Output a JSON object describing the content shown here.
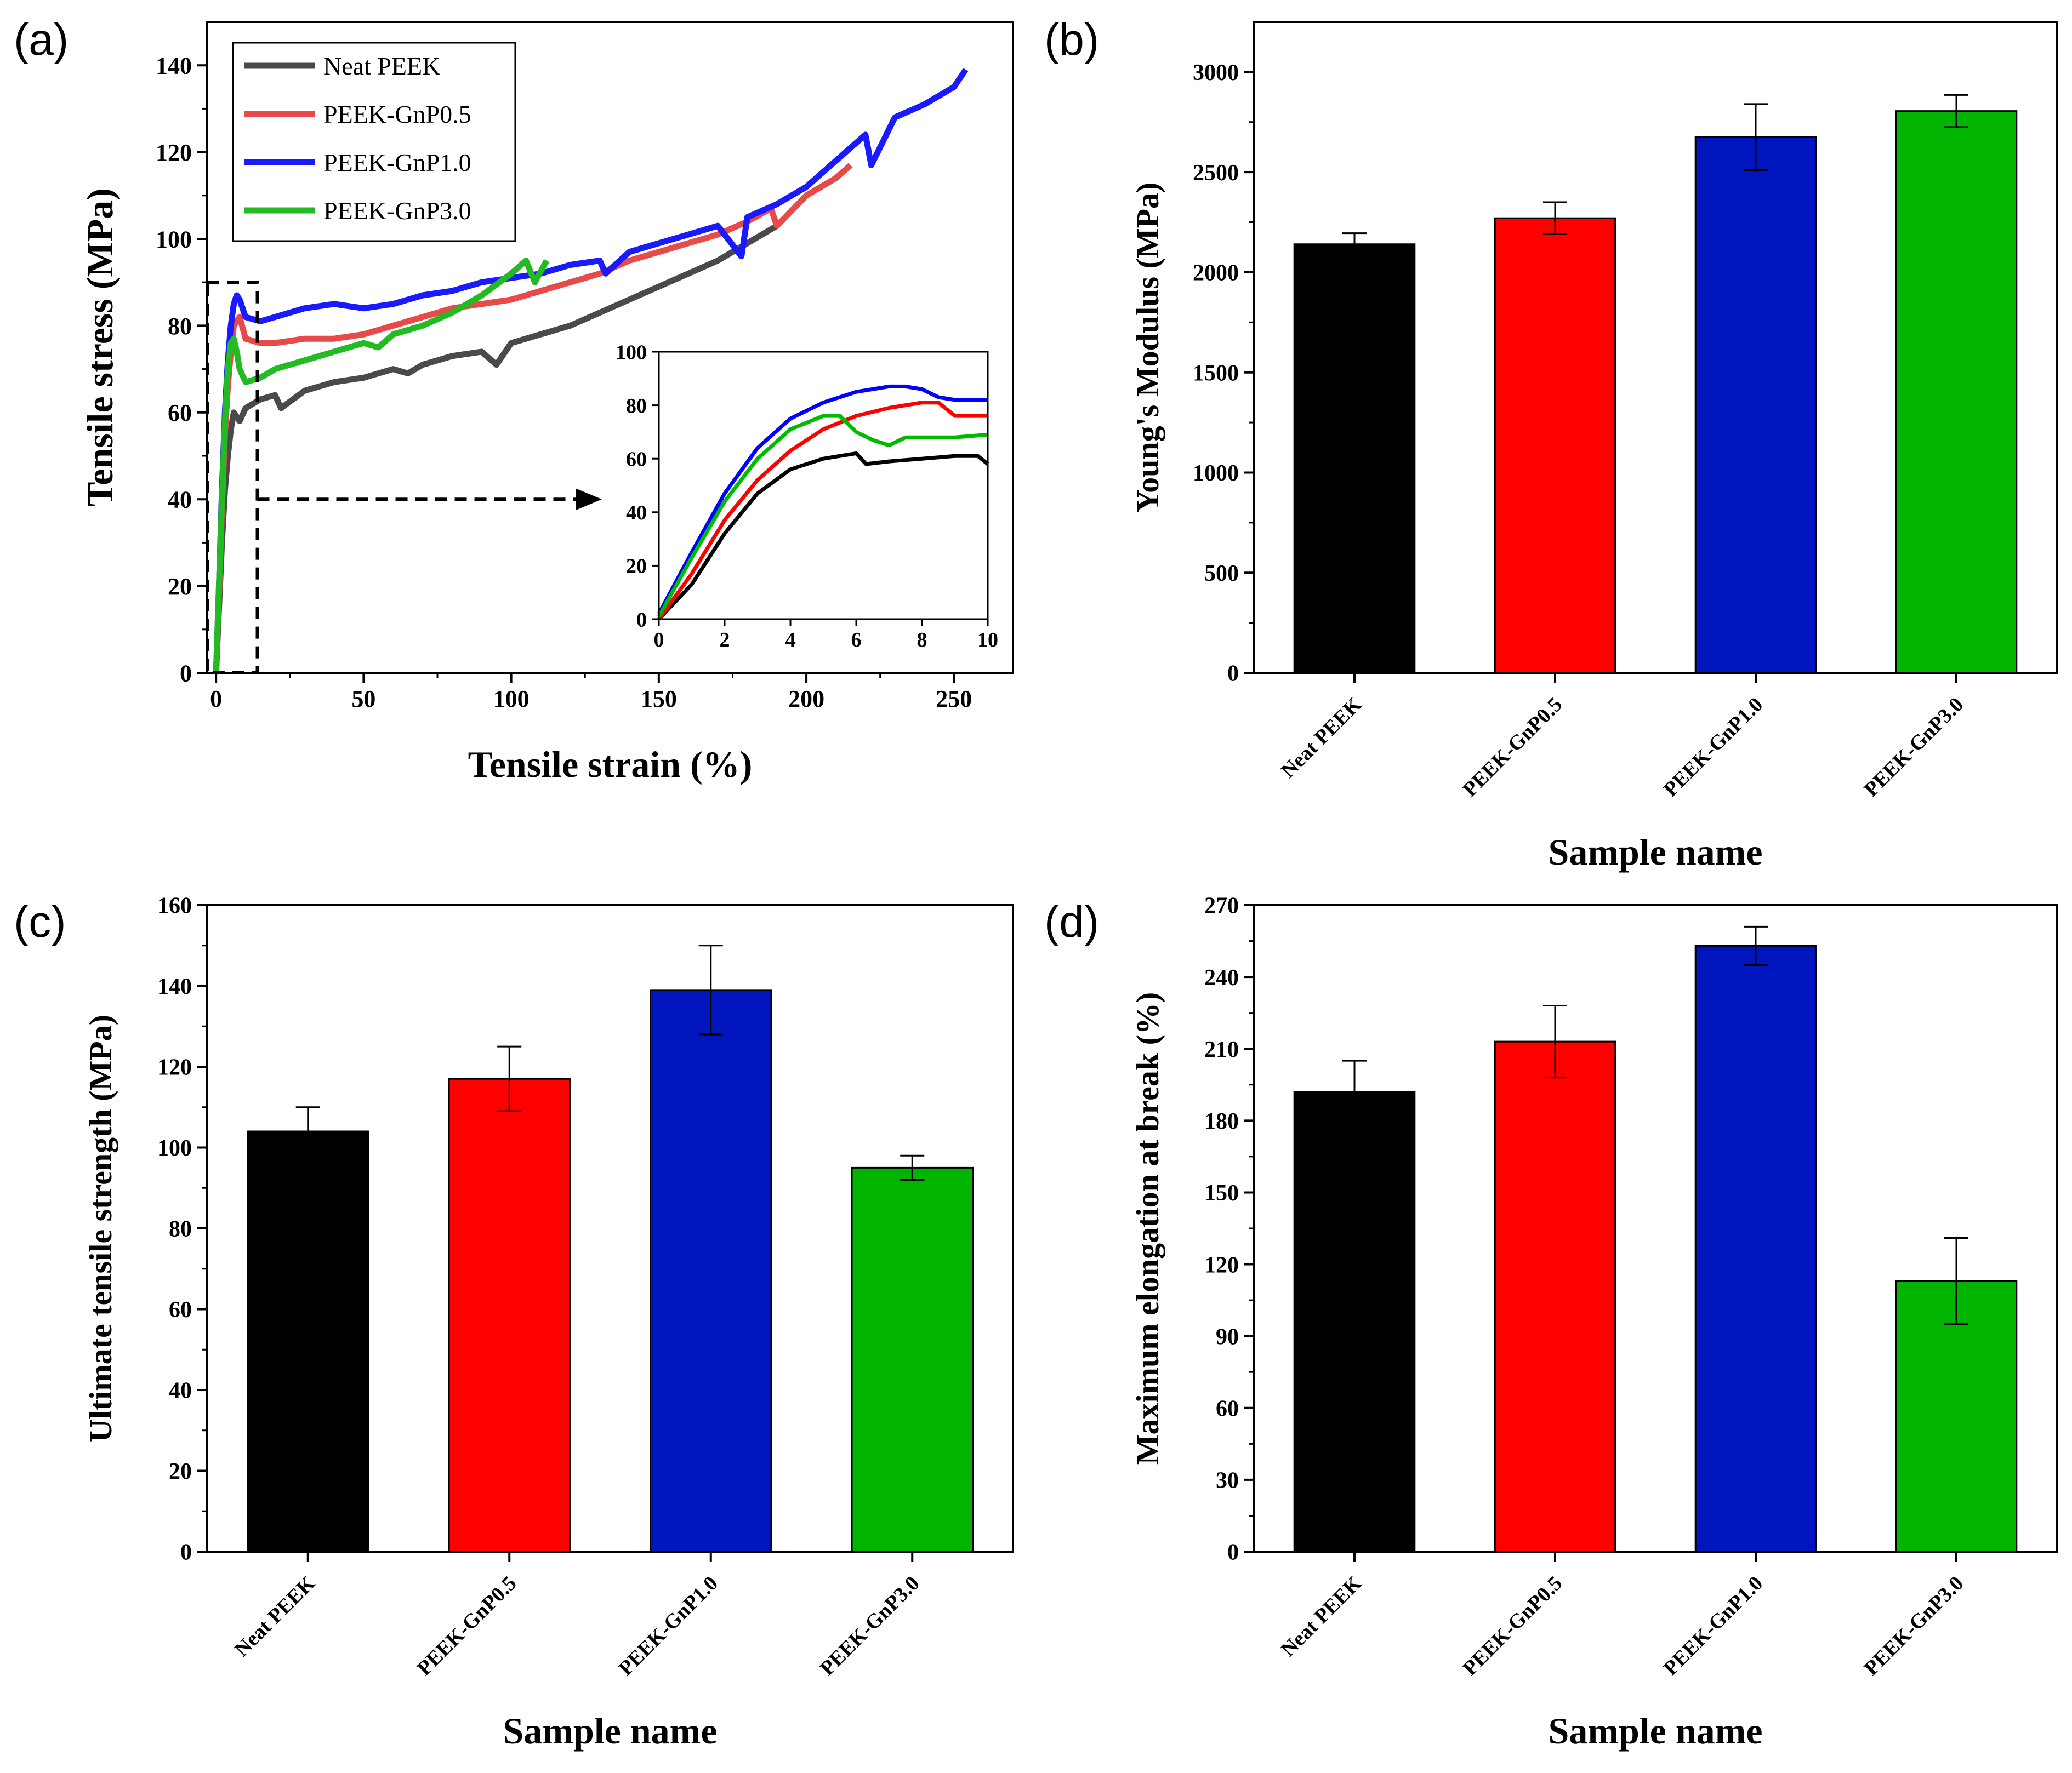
{
  "figure": {
    "panel_labels": [
      "(a)",
      "(b)",
      "(c)",
      "(d)"
    ]
  },
  "chart_data": [
    {
      "panel": "(a)",
      "type": "line",
      "title": "",
      "xlabel": "Tensile strain (%)",
      "ylabel": "Tensile stress (MPa)",
      "xlim": [
        -3,
        270
      ],
      "ylim": [
        0,
        150
      ],
      "xticks": [
        0,
        50,
        100,
        150,
        200,
        250
      ],
      "yticks": [
        0,
        20,
        40,
        60,
        80,
        100,
        120,
        140
      ],
      "legend": "top-left",
      "series": [
        {
          "name": "Neat PEEK",
          "color": "#4a4a4a",
          "x": [
            0,
            1,
            2,
            3,
            4,
            5,
            6,
            8,
            10,
            15,
            20,
            22,
            30,
            40,
            50,
            60,
            65,
            70,
            80,
            90,
            95,
            100,
            110,
            120,
            130,
            140,
            150,
            160,
            170,
            180,
            190
          ],
          "y": [
            0,
            15,
            30,
            42,
            50,
            56,
            60,
            58,
            61,
            63,
            64,
            61,
            65,
            67,
            68,
            70,
            69,
            71,
            73,
            74,
            71,
            76,
            78,
            80,
            83,
            86,
            89,
            92,
            95,
            99,
            103
          ]
        },
        {
          "name": "PEEK-GnP0.5",
          "color": "#e84a4a",
          "x": [
            0,
            1,
            2,
            3,
            4,
            5,
            6,
            8,
            10,
            15,
            20,
            30,
            40,
            50,
            60,
            70,
            80,
            90,
            100,
            110,
            120,
            130,
            140,
            150,
            160,
            170,
            180,
            188,
            190,
            200,
            210,
            215
          ],
          "y": [
            0,
            18,
            38,
            55,
            66,
            74,
            80,
            82,
            77,
            76,
            76,
            77,
            77,
            78,
            80,
            82,
            84,
            85,
            86,
            88,
            90,
            92,
            95,
            97,
            99,
            101,
            104,
            107,
            103,
            110,
            114,
            117
          ]
        },
        {
          "name": "PEEK-GnP1.0",
          "color": "#1a1aff",
          "x": [
            0,
            1,
            2,
            3,
            4,
            5,
            6,
            7,
            8,
            10,
            15,
            20,
            30,
            40,
            50,
            60,
            70,
            80,
            90,
            100,
            110,
            120,
            130,
            132,
            140,
            150,
            160,
            170,
            178,
            180,
            190,
            200,
            210,
            220,
            222,
            230,
            240,
            250,
            254
          ],
          "y": [
            0,
            20,
            42,
            60,
            72,
            80,
            85,
            87,
            86,
            82,
            81,
            82,
            84,
            85,
            84,
            85,
            87,
            88,
            90,
            91,
            92,
            94,
            95,
            92,
            97,
            99,
            101,
            103,
            96,
            105,
            108,
            112,
            118,
            124,
            117,
            128,
            131,
            135,
            139
          ]
        },
        {
          "name": "PEEK-GnP3.0",
          "color": "#22bb22",
          "x": [
            0,
            1,
            2,
            3,
            4,
            5,
            6,
            7,
            8,
            10,
            15,
            20,
            30,
            40,
            50,
            55,
            60,
            70,
            80,
            90,
            100,
            105,
            108,
            112
          ],
          "y": [
            0,
            20,
            40,
            58,
            70,
            76,
            77,
            74,
            70,
            67,
            68,
            70,
            72,
            74,
            76,
            75,
            78,
            80,
            83,
            87,
            92,
            95,
            90,
            95
          ]
        }
      ]
    },
    {
      "panel": "(a) inset",
      "type": "line",
      "title": "",
      "xlabel": "",
      "ylabel": "",
      "xlim": [
        0,
        10
      ],
      "ylim": [
        0,
        100
      ],
      "xticks": [
        0,
        2,
        4,
        6,
        8,
        10
      ],
      "yticks": [
        0,
        20,
        40,
        60,
        80,
        100
      ],
      "legend": "",
      "series": [
        {
          "name": "Neat PEEK",
          "color": "#000000",
          "x": [
            0,
            1,
            2,
            3,
            4,
            5,
            6,
            6.3,
            7,
            8,
            9,
            9.7,
            10
          ],
          "y": [
            0,
            13,
            32,
            47,
            56,
            60,
            62,
            58,
            59,
            60,
            61,
            61,
            58
          ]
        },
        {
          "name": "PEEK-GnP0.5",
          "color": "#ff0000",
          "x": [
            0,
            1,
            2,
            3,
            4,
            5,
            6,
            7,
            8,
            8.5,
            9,
            10
          ],
          "y": [
            0,
            17,
            37,
            52,
            63,
            71,
            76,
            79,
            81,
            81,
            76,
            76
          ]
        },
        {
          "name": "PEEK-GnP1.0",
          "color": "#0000ff",
          "x": [
            0,
            1,
            2,
            3,
            4,
            5,
            6,
            7,
            7.5,
            8,
            8.5,
            9,
            10
          ],
          "y": [
            2,
            25,
            47,
            64,
            75,
            81,
            85,
            87,
            87,
            86,
            83,
            82,
            82
          ]
        },
        {
          "name": "PEEK-GnP3.0",
          "color": "#00bb00",
          "x": [
            0,
            1,
            2,
            3,
            4,
            5,
            5.5,
            6,
            6.5,
            7,
            7.5,
            8,
            9,
            10
          ],
          "y": [
            1,
            23,
            44,
            60,
            71,
            76,
            76,
            70,
            67,
            65,
            68,
            68,
            68,
            69
          ]
        }
      ]
    },
    {
      "panel": "(b)",
      "type": "bar",
      "title": "",
      "xlabel": "Sample name",
      "ylabel": "Young's Modulus (MPa)",
      "categories": [
        "Neat PEEK",
        "PEEK-GnP0.5",
        "PEEK-GnP1.0",
        "PEEK-GnP3.0"
      ],
      "values": [
        2140,
        2270,
        2675,
        2805
      ],
      "errors": [
        55,
        80,
        165,
        80
      ],
      "colors": [
        "#000000",
        "#ff0000",
        "#0015bd",
        "#00b400"
      ],
      "ylim": [
        0,
        3250
      ],
      "yticks": [
        0,
        500,
        1000,
        1500,
        2000,
        2500,
        3000
      ]
    },
    {
      "panel": "(c)",
      "type": "bar",
      "title": "",
      "xlabel": "Sample name",
      "ylabel": "Ultimate tensile strength (MPa)",
      "categories": [
        "Neat PEEK",
        "PEEK-GnP0.5",
        "PEEK-GnP1.0",
        "PEEK-GnP3.0"
      ],
      "values": [
        104,
        117,
        139,
        95
      ],
      "errors": [
        6,
        8,
        11,
        3
      ],
      "colors": [
        "#000000",
        "#ff0000",
        "#0015bd",
        "#00b400"
      ],
      "ylim": [
        0,
        160
      ],
      "yticks": [
        0,
        20,
        40,
        60,
        80,
        100,
        120,
        140,
        160
      ]
    },
    {
      "panel": "(d)",
      "type": "bar",
      "title": "",
      "xlabel": "Sample name",
      "ylabel": "Maximum elongation at break (%)",
      "categories": [
        "Neat PEEK",
        "PEEK-GnP0.5",
        "PEEK-GnP1.0",
        "PEEK-GnP3.0"
      ],
      "values": [
        192,
        213,
        253,
        113
      ],
      "errors": [
        13,
        15,
        8,
        18
      ],
      "colors": [
        "#000000",
        "#ff0000",
        "#0015bd",
        "#00b400"
      ],
      "ylim": [
        0,
        270
      ],
      "yticks": [
        0,
        30,
        60,
        90,
        120,
        150,
        180,
        210,
        240,
        270
      ]
    }
  ]
}
